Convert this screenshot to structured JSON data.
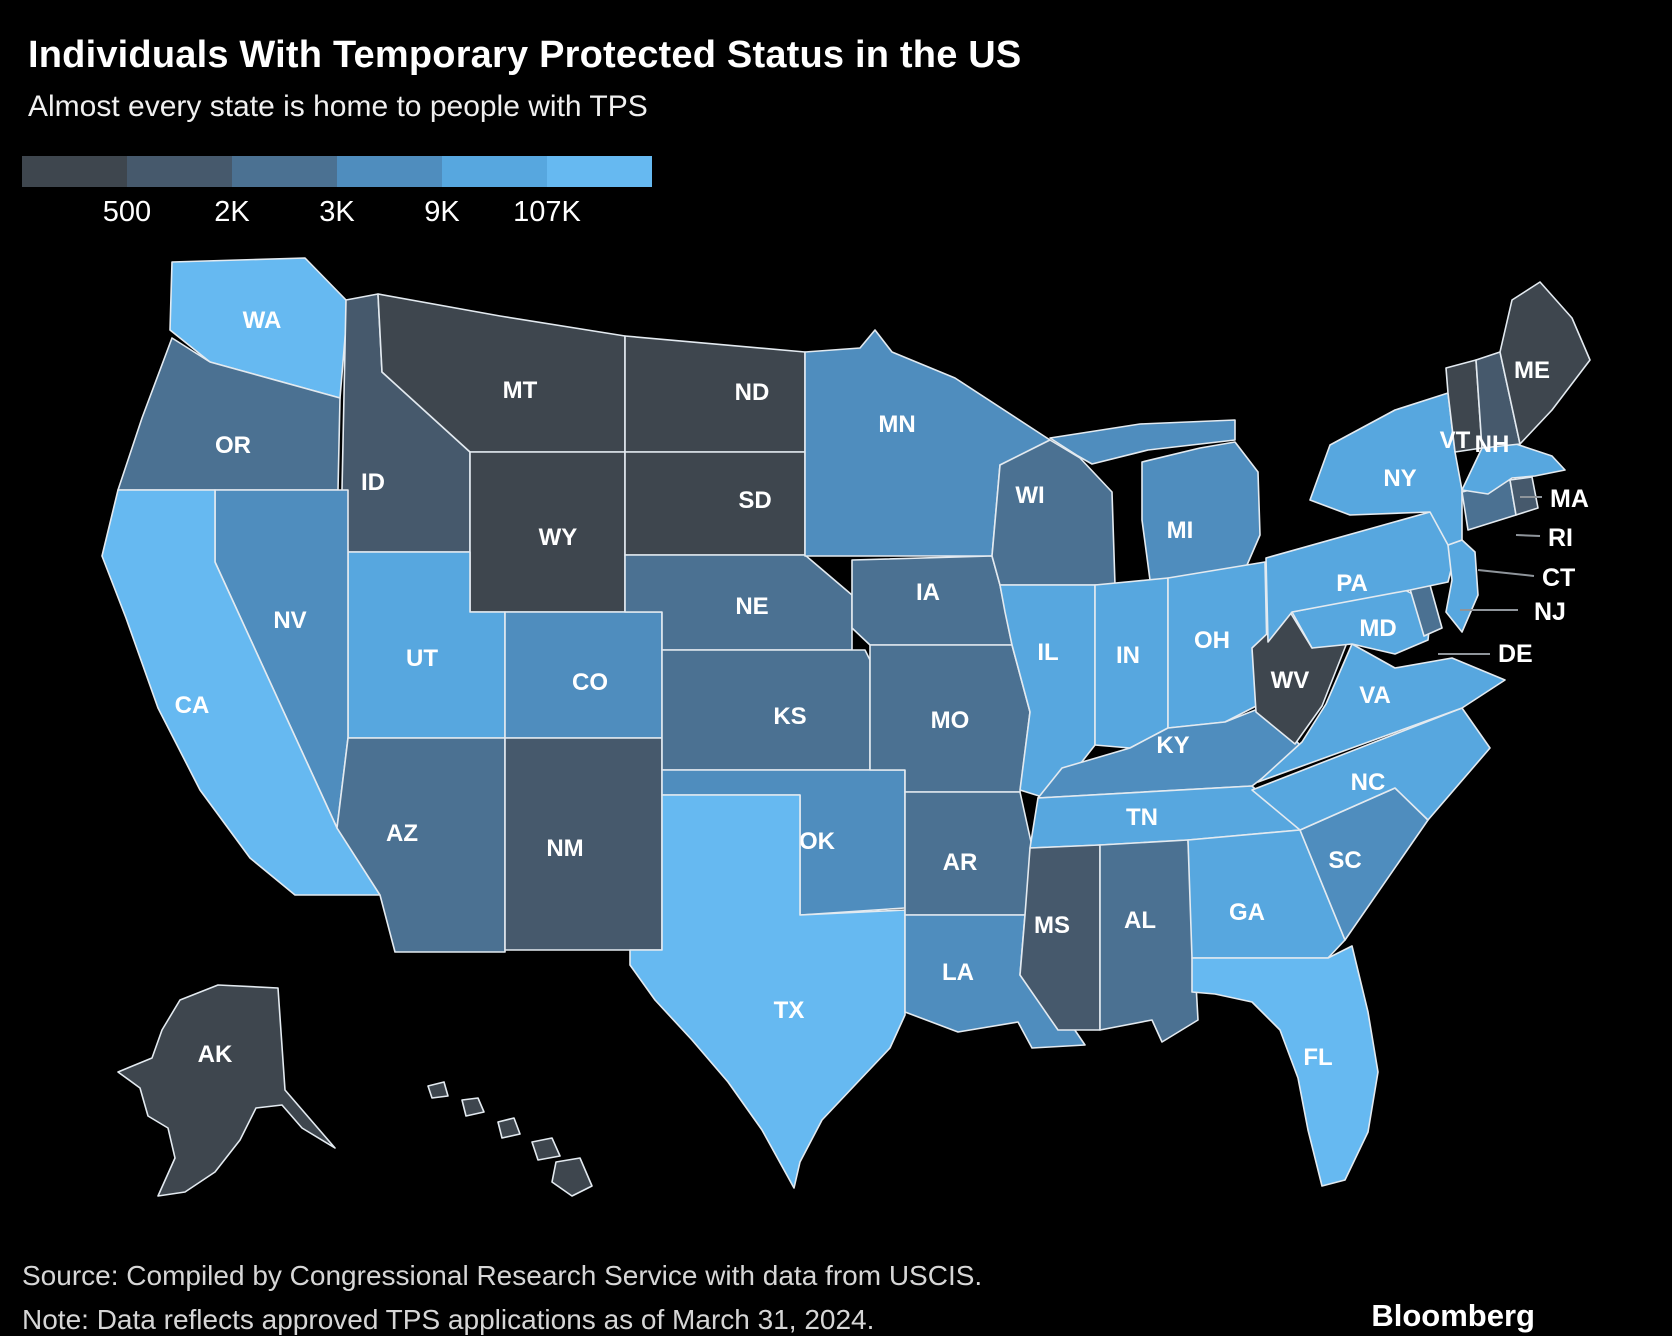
{
  "header": {
    "title": "Individuals With Temporary Protected Status in the US",
    "subtitle": "Almost every state is home to people with TPS"
  },
  "footer": {
    "source": "Source: Compiled by Congressional Research Service with data from USCIS.",
    "note": "Note: Data reflects approved TPS applications as of March 31, 2024.",
    "brand": "Bloomberg"
  },
  "chart_data": {
    "type": "choropleth_map",
    "region": "United States",
    "title": "Individuals With Temporary Protected Status in the US",
    "subtitle": "Almost every state is home to people with TPS",
    "legend": {
      "position": "top-left",
      "breaks": [
        "500",
        "2K",
        "3K",
        "9K",
        "107K"
      ],
      "colors": [
        "#3e464e",
        "#46596c",
        "#4b7192",
        "#4f8dbe",
        "#57a7df",
        "#66b9f1"
      ]
    },
    "states": [
      {
        "abbr": "WA",
        "bucket": 5
      },
      {
        "abbr": "OR",
        "bucket": 2
      },
      {
        "abbr": "CA",
        "bucket": 5
      },
      {
        "abbr": "NV",
        "bucket": 3
      },
      {
        "abbr": "ID",
        "bucket": 1
      },
      {
        "abbr": "MT",
        "bucket": 0
      },
      {
        "abbr": "WY",
        "bucket": 0
      },
      {
        "abbr": "UT",
        "bucket": 4
      },
      {
        "abbr": "CO",
        "bucket": 3
      },
      {
        "abbr": "AZ",
        "bucket": 2
      },
      {
        "abbr": "NM",
        "bucket": 1
      },
      {
        "abbr": "ND",
        "bucket": 0
      },
      {
        "abbr": "SD",
        "bucket": 0
      },
      {
        "abbr": "NE",
        "bucket": 2
      },
      {
        "abbr": "KS",
        "bucket": 2
      },
      {
        "abbr": "OK",
        "bucket": 3
      },
      {
        "abbr": "TX",
        "bucket": 5
      },
      {
        "abbr": "MN",
        "bucket": 3
      },
      {
        "abbr": "IA",
        "bucket": 2
      },
      {
        "abbr": "MO",
        "bucket": 2
      },
      {
        "abbr": "AR",
        "bucket": 2
      },
      {
        "abbr": "LA",
        "bucket": 3
      },
      {
        "abbr": "WI",
        "bucket": 2
      },
      {
        "abbr": "IL",
        "bucket": 4
      },
      {
        "abbr": "MI",
        "bucket": 3
      },
      {
        "abbr": "IN",
        "bucket": 4
      },
      {
        "abbr": "OH",
        "bucket": 4
      },
      {
        "abbr": "KY",
        "bucket": 3
      },
      {
        "abbr": "TN",
        "bucket": 4
      },
      {
        "abbr": "MS",
        "bucket": 1
      },
      {
        "abbr": "AL",
        "bucket": 2
      },
      {
        "abbr": "GA",
        "bucket": 4
      },
      {
        "abbr": "FL",
        "bucket": 5
      },
      {
        "abbr": "SC",
        "bucket": 3
      },
      {
        "abbr": "NC",
        "bucket": 4
      },
      {
        "abbr": "VA",
        "bucket": 4
      },
      {
        "abbr": "WV",
        "bucket": 0
      },
      {
        "abbr": "MD",
        "bucket": 4
      },
      {
        "abbr": "DE",
        "bucket": 2
      },
      {
        "abbr": "PA",
        "bucket": 4
      },
      {
        "abbr": "NY",
        "bucket": 4
      },
      {
        "abbr": "NJ",
        "bucket": 4
      },
      {
        "abbr": "CT",
        "bucket": 2
      },
      {
        "abbr": "RI",
        "bucket": 1
      },
      {
        "abbr": "MA",
        "bucket": 4
      },
      {
        "abbr": "VT",
        "bucket": 0
      },
      {
        "abbr": "NH",
        "bucket": 1
      },
      {
        "abbr": "ME",
        "bucket": 0
      },
      {
        "abbr": "AK",
        "bucket": 0
      },
      {
        "abbr": "HI",
        "bucket": 0
      }
    ],
    "callout_states": [
      "MA",
      "RI",
      "CT",
      "NJ",
      "DE"
    ]
  }
}
